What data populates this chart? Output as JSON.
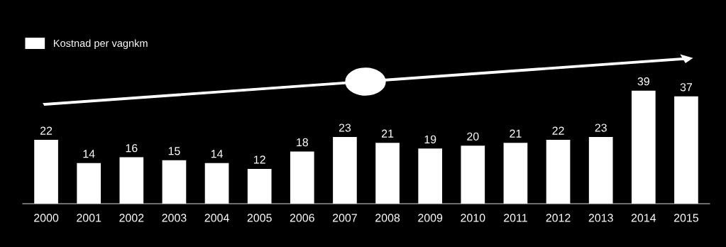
{
  "chart_data": {
    "type": "bar",
    "categories": [
      "2000",
      "2001",
      "2002",
      "2003",
      "2004",
      "2005",
      "2006",
      "2007",
      "2008",
      "2009",
      "2010",
      "2011",
      "2012",
      "2013",
      "2014",
      "2015"
    ],
    "series": [
      {
        "name": "Kostnad per vagnkm",
        "color": "#ffffff",
        "values": [
          22,
          14,
          16,
          15,
          14,
          12,
          18,
          23,
          21,
          19,
          20,
          21,
          22,
          23,
          39,
          37
        ]
      }
    ],
    "data_labels": true,
    "legend": "top left",
    "grid": false
  }
}
